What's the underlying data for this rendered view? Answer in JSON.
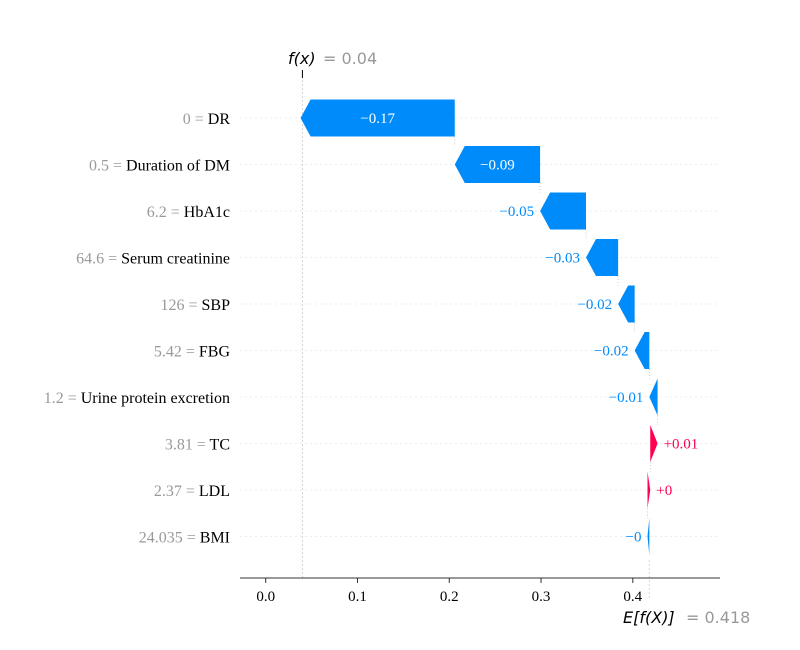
{
  "chart_data": {
    "type": "waterfall",
    "base_value": 0.418,
    "base_value_label": "= 0.418",
    "base_value_name": "E[f(X)]",
    "output_value": 0.04,
    "output_value_label": "= 0.04",
    "output_value_name": "f(x)",
    "x_ticks": [
      0.0,
      0.1,
      0.2,
      0.3,
      0.4
    ],
    "x_tick_labels": [
      "0.0",
      "0.1",
      "0.2",
      "0.3",
      "0.4"
    ],
    "xlim": [
      -0.028,
      0.495
    ],
    "features": [
      {
        "feature_value": "0",
        "name": "DR",
        "contribution": -0.168,
        "label": "−0.17"
      },
      {
        "feature_value": "0.5",
        "name": "Duration of DM",
        "contribution": -0.093,
        "label": "−0.09"
      },
      {
        "feature_value": "6.2",
        "name": "HbA1c",
        "contribution": -0.05,
        "label": "−0.05"
      },
      {
        "feature_value": "64.6",
        "name": "Serum creatinine",
        "contribution": -0.035,
        "label": "−0.03"
      },
      {
        "feature_value": "126",
        "name": "SBP",
        "contribution": -0.018,
        "label": "−0.02"
      },
      {
        "feature_value": "5.42",
        "name": "FBG",
        "contribution": -0.016,
        "label": "−0.02"
      },
      {
        "feature_value": "1.2",
        "name": "Urine protein excretion",
        "contribution": -0.009,
        "label": "−0.01"
      },
      {
        "feature_value": "3.81",
        "name": "TC",
        "contribution": 0.008,
        "label": "+0.01"
      },
      {
        "feature_value": "2.37",
        "name": "LDL",
        "contribution": 0.003,
        "label": "+0"
      },
      {
        "feature_value": "24.035",
        "name": "BMI",
        "contribution": -0.002,
        "label": "−0"
      }
    ],
    "colors": {
      "negative": "#008bfb",
      "positive": "#ff0051",
      "grid": "#cccccc",
      "axis": "#333333"
    }
  }
}
